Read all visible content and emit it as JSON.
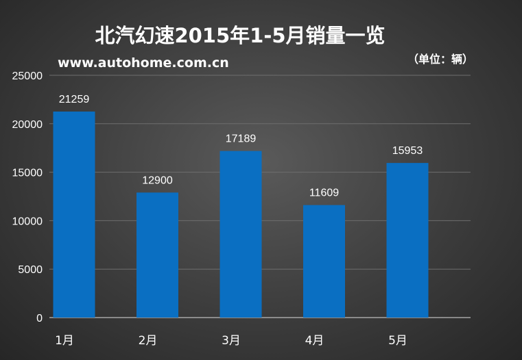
{
  "chart_data": {
    "type": "bar",
    "title": "北汽幻速2015年1-5月销量一览",
    "subtitle": "www.autohome.com.cn",
    "unit_note": "（单位：辆）",
    "categories": [
      "1月",
      "2月",
      "3月",
      "4月",
      "5月"
    ],
    "values": [
      21259,
      12900,
      17189,
      11609,
      15953
    ],
    "yticks": [
      0,
      5000,
      10000,
      15000,
      20000,
      25000
    ],
    "ylim": [
      0,
      25000
    ],
    "grid": true,
    "bar_color": "#0a6fc2"
  }
}
